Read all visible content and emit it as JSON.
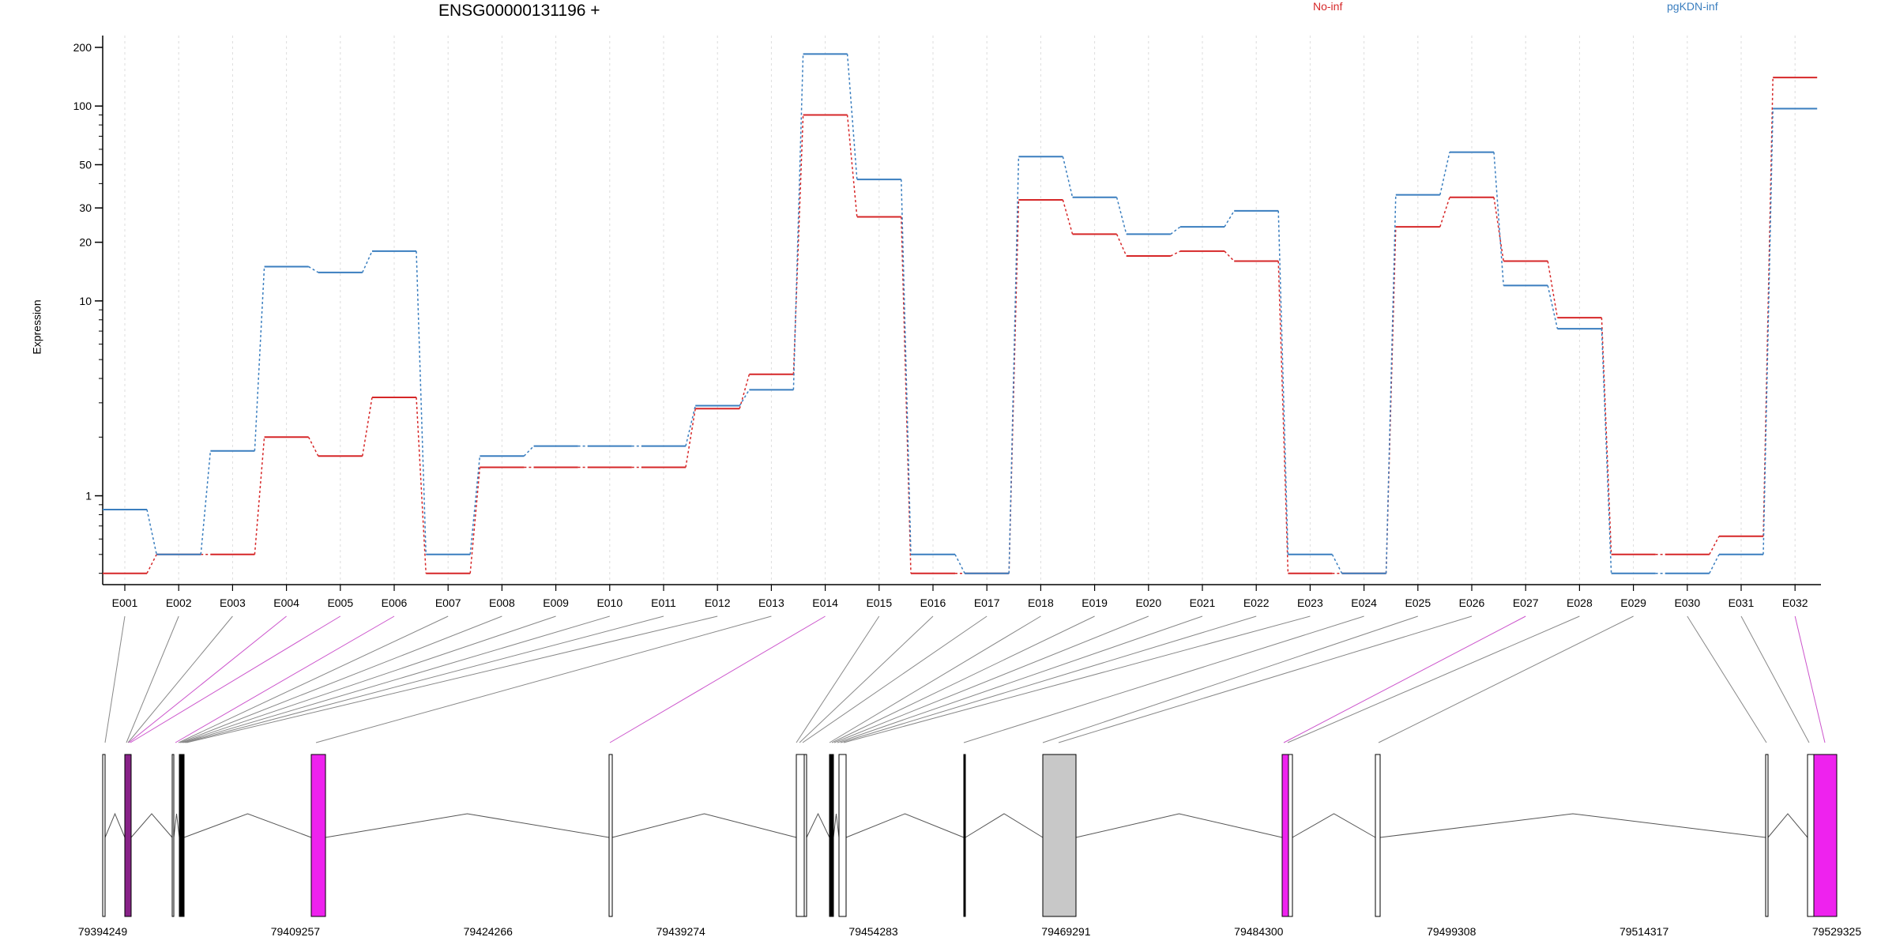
{
  "chart_data": {
    "type": "line",
    "title": "ENSG00000131196 +",
    "ylabel": "Expression",
    "y_scale": "log",
    "y_ticks": [
      1,
      10,
      20,
      30,
      50,
      100,
      200
    ],
    "ylim": [
      0.35,
      230
    ],
    "grid": "vertical",
    "legend_position": "top",
    "colors": {
      "No-inf": "#d62728",
      "pgKDN-inf": "#3a7ebf",
      "exon_highlight": "#ee22ee",
      "exon_highlight_dark": "#882288",
      "exon_gray": "#c8c8c8",
      "connector_gray": "#888888",
      "connector_pink": "#cc55cc"
    },
    "categories": [
      "E001",
      "E002",
      "E003",
      "E004",
      "E005",
      "E006",
      "E007",
      "E008",
      "E009",
      "E010",
      "E011",
      "E012",
      "E013",
      "E014",
      "E015",
      "E016",
      "E017",
      "E018",
      "E019",
      "E020",
      "E021",
      "E022",
      "E023",
      "E024",
      "E025",
      "E026",
      "E027",
      "E028",
      "E029",
      "E030",
      "E031",
      "E032"
    ],
    "highlighted_exons": [
      "E004",
      "E005",
      "E006",
      "E014",
      "E027",
      "E032"
    ],
    "series": [
      {
        "name": "No-inf",
        "values": [
          0.4,
          0.5,
          0.5,
          2.0,
          1.6,
          3.2,
          0.4,
          1.4,
          1.4,
          1.4,
          1.4,
          2.8,
          4.2,
          90,
          27,
          0.4,
          0.4,
          33,
          22,
          17,
          18,
          16,
          0.4,
          0.4,
          24,
          34,
          16,
          8.2,
          0.5,
          0.5,
          0.62,
          140
        ]
      },
      {
        "name": "pgKDN-inf",
        "values": [
          0.85,
          0.5,
          1.7,
          15,
          14,
          18,
          0.5,
          1.6,
          1.8,
          1.8,
          1.8,
          2.9,
          3.5,
          185,
          42,
          0.5,
          0.4,
          55,
          34,
          22,
          24,
          29,
          0.5,
          0.4,
          35,
          58,
          12,
          7.2,
          0.4,
          0.4,
          0.5,
          97
        ]
      }
    ],
    "gene_model": {
      "axis_ticks": [
        "79394249",
        "79409257",
        "79424266",
        "79439274",
        "79454283",
        "79469291",
        "79484300",
        "79499308",
        "79514317",
        "79529325"
      ]
    }
  }
}
